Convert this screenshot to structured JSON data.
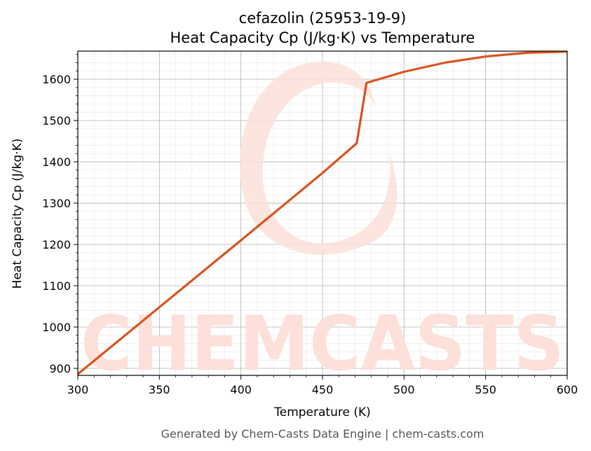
{
  "chart_data": {
    "type": "line",
    "title": "cefazolin (25953-19-9)",
    "subtitle": "Heat Capacity Cp (J/kg·K) vs Temperature",
    "xlabel": "Temperature (K)",
    "ylabel": "Heat Capacity Cp (J/kg·K)",
    "xlim": [
      300,
      600
    ],
    "ylim": [
      883,
      1668
    ],
    "xticks": [
      300,
      350,
      400,
      450,
      500,
      550,
      600
    ],
    "yticks": [
      900,
      1000,
      1100,
      1200,
      1300,
      1400,
      1500,
      1600
    ],
    "grid": true,
    "legend": "none",
    "series": [
      {
        "color": "#d9531e",
        "x": [
          300,
          350,
          400,
          450,
          471,
          477,
          500,
          525,
          550,
          575,
          600
        ],
        "y": [
          886,
          1048,
          1210,
          1373,
          1445,
          1591,
          1618,
          1640,
          1655,
          1664,
          1667
        ]
      }
    ]
  },
  "watermark": {
    "text": "CHEMCASTS",
    "color": "#fde0d9"
  },
  "footer": "Generated by Chem-Casts Data Engine | chem-casts.com"
}
